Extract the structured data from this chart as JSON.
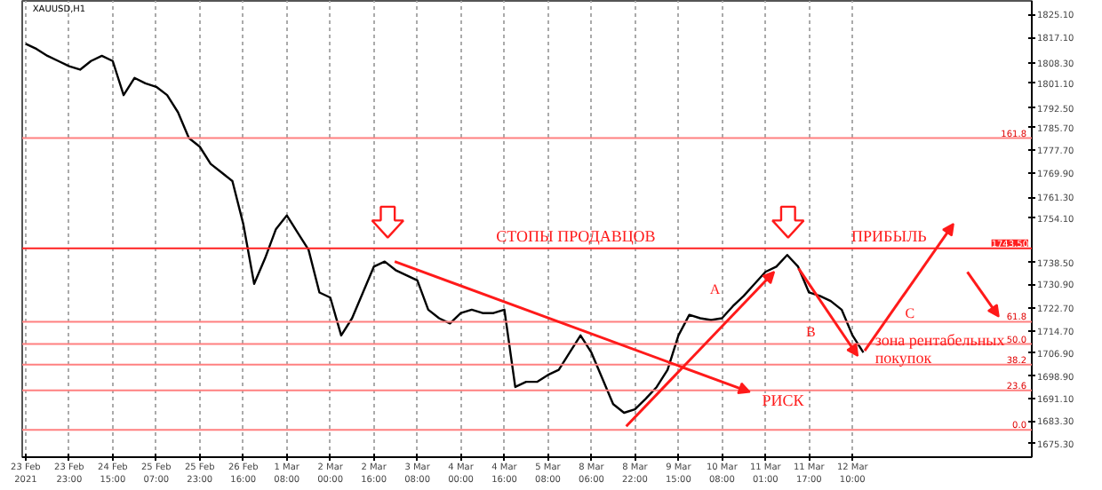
{
  "chart_data": {
    "type": "line",
    "title": "XAUUSD,H1",
    "categories": [
      "23 Feb 2021",
      null,
      null,
      null,
      "23 Feb 23:00",
      null,
      null,
      null,
      "24 Feb 15:00",
      null,
      null,
      null,
      "25 Feb 07:00",
      null,
      null,
      null,
      "25 Feb 23:00",
      null,
      null,
      null,
      "26 Feb 16:00",
      null,
      null,
      null,
      "1 Mar 08:00",
      null,
      null,
      null,
      "2 Mar 00:00",
      null,
      null,
      null,
      "2 Mar 16:00",
      null,
      null,
      null,
      "3 Mar 08:00",
      null,
      null,
      null,
      "4 Mar 00:00",
      null,
      null,
      null,
      "4 Mar 16:00",
      null,
      null,
      null,
      "5 Mar 08:00",
      null,
      null,
      null,
      "8 Mar 06:00",
      null,
      null,
      null,
      "8 Mar 22:00",
      null,
      null,
      null,
      "9 Mar 15:00",
      null,
      null,
      null,
      "10 Mar 08:00",
      null,
      null,
      null,
      "11 Mar 01:00",
      null,
      null,
      null,
      "11 Mar 17:00",
      null,
      null,
      null,
      "12 Mar 10:00",
      null,
      null,
      null,
      null,
      null,
      null,
      null,
      null,
      null,
      null,
      null,
      null,
      null,
      null,
      null,
      null
    ],
    "series": [
      {
        "color": "#000000",
        "values": [
          1814.9,
          1813.1,
          1810.7,
          1808.9,
          1807.1,
          1805.9,
          1808.9,
          1810.7,
          1808.9,
          1797.0,
          1803.0,
          1801.1,
          1799.9,
          1797.0,
          1791.0,
          1782.0,
          1779.0,
          1773.0,
          1770.0,
          1767.0,
          1752.0,
          1731.1,
          1740.0,
          1750.2,
          1755.0,
          1749.0,
          1743.0,
          1728.1,
          1726.3,
          1713.1,
          1719.1,
          1728.1,
          1737.1,
          1738.9,
          1735.9,
          1734.1,
          1732.3,
          1722.1,
          1719.1,
          1717.3,
          1720.9,
          1722.1,
          1720.9,
          1720.9,
          1722.1,
          1695.1,
          1696.9,
          1696.9,
          1699.3,
          1701.1,
          1707.1,
          1713.1,
          1707.1,
          1698.1,
          1689.1,
          1686.1,
          1687.3,
          1691.0,
          1695.1,
          1701.1,
          1713.1,
          1720.3,
          1719.1,
          1718.5,
          1719.1,
          1723.3,
          1726.9,
          1731.1,
          1735.3,
          1737.1,
          1741.2,
          1737.1,
          1728.1,
          1726.9,
          1725.1,
          1722.1,
          1713.1,
          1707.1,
          null,
          null,
          null,
          null,
          null,
          null,
          null,
          null,
          null,
          null,
          null,
          null,
          null,
          null,
          null
        ]
      }
    ],
    "ylim": [
      1670.6,
      1829.9
    ],
    "yticks": [
      {
        "value": 1825.1,
        "label": "1825.10"
      },
      {
        "value": 1817.1,
        "label": "1817.10"
      },
      {
        "value": 1808.3,
        "label": "1808.30"
      },
      {
        "value": 1801.1,
        "label": "1801.10"
      },
      {
        "value": 1792.5,
        "label": "1792.50"
      },
      {
        "value": 1785.7,
        "label": "1785.70"
      },
      {
        "value": 1777.7,
        "label": "1777.70"
      },
      {
        "value": 1769.9,
        "label": "1769.90"
      },
      {
        "value": 1761.3,
        "label": "1761.30"
      },
      {
        "value": 1754.1,
        "label": "1754.10"
      },
      {
        "value": 1738.5,
        "label": "1738.50"
      },
      {
        "value": 1730.9,
        "label": "1730.90"
      },
      {
        "value": 1722.7,
        "label": "1722.70"
      },
      {
        "value": 1714.7,
        "label": "1714.70"
      },
      {
        "value": 1706.9,
        "label": "1706.90"
      },
      {
        "value": 1698.9,
        "label": "1698.90"
      },
      {
        "value": 1691.1,
        "label": "1691.10"
      },
      {
        "value": 1683.3,
        "label": "1683.30"
      },
      {
        "value": 1675.3,
        "label": "1675.30"
      }
    ],
    "ref_lines": [
      {
        "axis": "y",
        "value": 1743.5,
        "label": "1743.50",
        "color": "#ff2020"
      },
      {
        "axis": "y",
        "value": 1782.0,
        "color": "#ff8080"
      },
      {
        "axis": "y",
        "value": 1717.9,
        "color": "#ff8080"
      },
      {
        "axis": "y",
        "value": 1710.1,
        "color": "#ff8080"
      },
      {
        "axis": "y",
        "value": 1702.9,
        "color": "#ff8080"
      },
      {
        "axis": "y",
        "value": 1693.9,
        "color": "#ff8080"
      },
      {
        "axis": "y",
        "value": 1680.1,
        "color": "#ff8080"
      }
    ],
    "annotations": [
      "СТОПЫ ПРОДАВЦОВ",
      "ПРИБЫЛЬ",
      "РИСК",
      "зона рентабельных\nпокупок",
      "A",
      "B",
      "C",
      {
        "text": "161.8",
        "y": 1782.0
      },
      {
        "text": "61.8",
        "y": 1717.9
      },
      {
        "text": "50.0",
        "y": 1710.1
      },
      {
        "text": "38.2",
        "y": 1702.9
      },
      {
        "text": "23.6",
        "y": 1693.9
      },
      {
        "text": "0.0",
        "y": 1680.1
      }
    ],
    "grid": "x",
    "line_style": "solid",
    "marker": "none"
  }
}
